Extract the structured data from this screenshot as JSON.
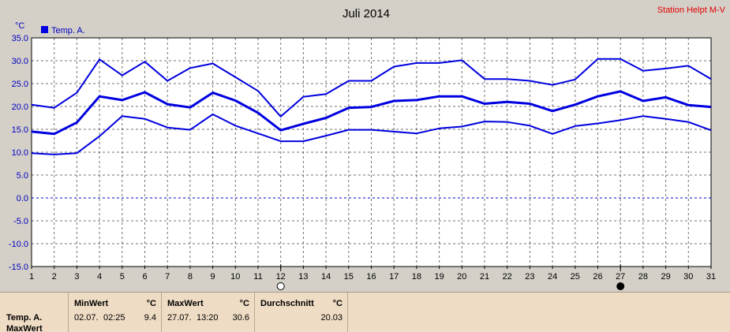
{
  "chart_data": {
    "type": "line",
    "title": "Juli 2014",
    "ylabel": "°C",
    "ylim": [
      -15,
      35
    ],
    "yticks": [
      "35.0",
      "30.0",
      "25.0",
      "20.0",
      "15.0",
      "10.0",
      "5.0",
      "0.0",
      "-5.0",
      "-10.0",
      "-15.0"
    ],
    "x": [
      1,
      2,
      3,
      4,
      5,
      6,
      7,
      8,
      9,
      10,
      11,
      12,
      13,
      14,
      15,
      16,
      17,
      18,
      19,
      20,
      21,
      22,
      23,
      24,
      25,
      26,
      27,
      28,
      29,
      30,
      31
    ],
    "legend": "top-left",
    "grid": true,
    "series": [
      {
        "name": "Temp. A.",
        "role": "max",
        "color": "#0000e0",
        "values": [
          20.4,
          19.7,
          23.0,
          30.3,
          26.8,
          29.8,
          25.6,
          28.4,
          29.4,
          26.4,
          23.4,
          17.8,
          22.1,
          22.7,
          25.6,
          25.6,
          28.7,
          29.5,
          29.5,
          30.1,
          26.0,
          26.0,
          25.6,
          24.7,
          25.9,
          30.4,
          30.4,
          27.8,
          28.3,
          28.9,
          26.0
        ]
      },
      {
        "name": "Temp. A.",
        "role": "avg",
        "color": "#0000e0",
        "values": [
          14.5,
          14.0,
          16.5,
          22.2,
          21.4,
          23.1,
          20.5,
          19.8,
          23.0,
          21.3,
          18.6,
          14.8,
          16.2,
          17.5,
          19.7,
          19.9,
          21.2,
          21.4,
          22.2,
          22.2,
          20.6,
          21.0,
          20.6,
          19.0,
          20.4,
          22.2,
          23.3,
          21.2,
          22.0,
          20.3,
          19.9
        ]
      },
      {
        "name": "Temp. A.",
        "role": "min",
        "color": "#0000e0",
        "values": [
          9.8,
          9.5,
          9.8,
          13.5,
          17.9,
          17.3,
          15.4,
          14.9,
          18.3,
          15.8,
          14.1,
          12.4,
          12.4,
          13.6,
          14.9,
          14.9,
          14.5,
          14.1,
          15.2,
          15.6,
          16.7,
          16.6,
          15.8,
          14.0,
          15.7,
          16.3,
          17.0,
          17.9,
          17.3,
          16.6,
          14.8
        ]
      }
    ]
  },
  "header": {
    "title": "Juli 2014",
    "station": "Station Helpt M-V",
    "unit_label": "°C",
    "legend_label": "Temp. A."
  },
  "moon_markers": [
    {
      "day": 12,
      "phase": "full",
      "symbol": "○"
    },
    {
      "day": 27,
      "phase": "new",
      "symbol": "●"
    }
  ],
  "footer": {
    "row_labels": [
      "Temp. A.",
      "MaxWert"
    ],
    "min": {
      "header": "MinWert",
      "unit": "°C",
      "date": "02.07.",
      "time": "02:25",
      "value": "9.4"
    },
    "max": {
      "header": "MaxWert",
      "unit": "°C",
      "date": "27.07.",
      "time": "13:20",
      "value": "30.6"
    },
    "avg": {
      "header": "Durchschnitt",
      "unit": "°C",
      "value": "20.03"
    }
  }
}
